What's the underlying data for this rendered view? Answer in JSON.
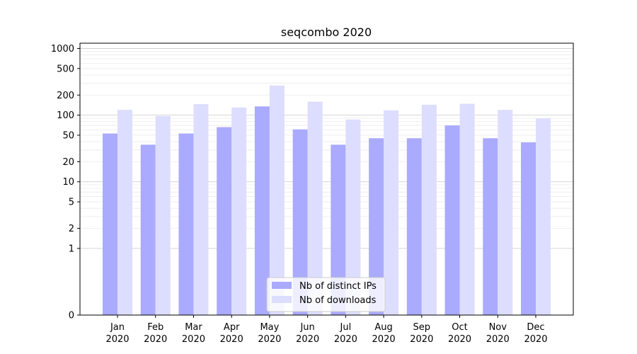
{
  "chart_data": {
    "type": "bar",
    "title": "seqcombo 2020",
    "xlabel": "",
    "ylabel": "",
    "y_scale": "symlog",
    "ylim": [
      0,
      1200
    ],
    "y_ticks": [
      0,
      1,
      2,
      5,
      10,
      20,
      50,
      100,
      200,
      500,
      1000
    ],
    "y_tick_labels": [
      "0",
      "1",
      "2",
      "5",
      "10",
      "20",
      "50",
      "100",
      "200",
      "500",
      "1000"
    ],
    "categories": [
      "Jan\n2020",
      "Feb\n2020",
      "Mar\n2020",
      "Apr\n2020",
      "May\n2020",
      "Jun\n2020",
      "Jul\n2020",
      "Aug\n2020",
      "Sep\n2020",
      "Oct\n2020",
      "Nov\n2020",
      "Dec\n2020"
    ],
    "series": [
      {
        "name": "Nb of distinct IPs",
        "color": "#aaaaff",
        "values": [
          53,
          36,
          53,
          66,
          135,
          61,
          36,
          45,
          45,
          70,
          45,
          39
        ]
      },
      {
        "name": "Nb of downloads",
        "color": "#ddddff",
        "values": [
          120,
          97,
          146,
          130,
          278,
          159,
          86,
          118,
          143,
          148,
          120,
          89
        ]
      }
    ],
    "grid": true,
    "legend_position": "bottom-center"
  }
}
